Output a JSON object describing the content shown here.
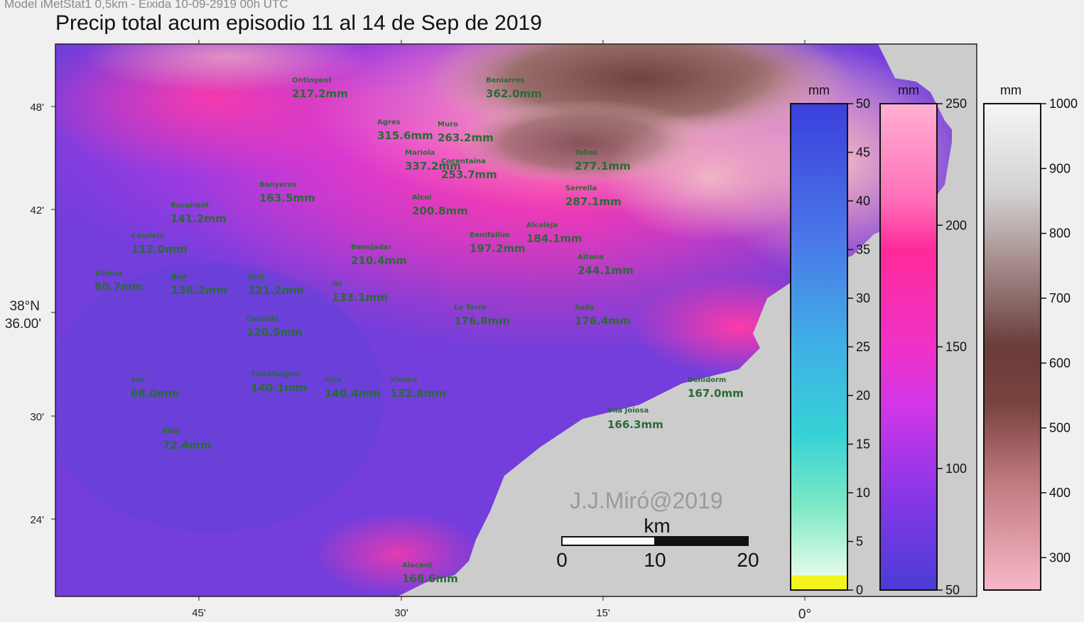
{
  "header": {
    "caption": "Model iMetStat1 0,5km - Eixida 10-09-2919 00h UTC",
    "title": "Precip total acum episodio 11 al 14 de Sep de 2019"
  },
  "axes": {
    "lat_labels": [
      "48'",
      "42'",
      "38°N",
      "36.00'",
      "30'",
      "24'"
    ],
    "lon_labels": [
      "45'",
      "30'",
      "15'",
      "0°"
    ]
  },
  "stations": [
    {
      "name": "Ontinyent",
      "value": "217.2mm"
    },
    {
      "name": "Beniarrés",
      "value": "362.0mm"
    },
    {
      "name": "Agres",
      "value": "315.6mm"
    },
    {
      "name": "Muro",
      "value": "263.2mm"
    },
    {
      "name": "Mariola",
      "value": "337.2mm"
    },
    {
      "name": "Cocentaina",
      "value": "253.7mm"
    },
    {
      "name": "Tollos",
      "value": "277.1mm"
    },
    {
      "name": "Banyeres",
      "value": "163.5mm"
    },
    {
      "name": "Serrella",
      "value": "287.1mm"
    },
    {
      "name": "Bocairent",
      "value": "141.2mm"
    },
    {
      "name": "Alcoi",
      "value": "200.8mm"
    },
    {
      "name": "Alcoleja",
      "value": "184.1mm"
    },
    {
      "name": "Benifallim",
      "value": "197.2mm"
    },
    {
      "name": "Caudete",
      "value": "112.0mm"
    },
    {
      "name": "Benejadar",
      "value": "210.4mm"
    },
    {
      "name": "Aitana",
      "value": "244.1mm"
    },
    {
      "name": "Villena",
      "value": "80.7mm"
    },
    {
      "name": "Biar",
      "value": "136.2mm"
    },
    {
      "name": "Onil",
      "value": "121.2mm"
    },
    {
      "name": "Ibi",
      "value": "133.1mm"
    },
    {
      "name": "La Torre",
      "value": "176.8mm"
    },
    {
      "name": "Sella",
      "value": "176.4mm"
    },
    {
      "name": "Castalla",
      "value": "120.5mm"
    },
    {
      "name": "Sax",
      "value": "68.0mm"
    },
    {
      "name": "Tibi/Maigmó",
      "value": "140.1mm"
    },
    {
      "name": "Foia",
      "value": "140.4mm"
    },
    {
      "name": "Xixona",
      "value": "132.8mm"
    },
    {
      "name": "Benidorm",
      "value": "167.0mm"
    },
    {
      "name": "Vila Joiosa",
      "value": "166.3mm"
    },
    {
      "name": "Elda",
      "value": "72.4mm"
    },
    {
      "name": "Alacant",
      "value": "168.6mm"
    }
  ],
  "colorbars": [
    {
      "unit": "mm",
      "ticks": [
        "50",
        "45",
        "40",
        "35",
        "30",
        "25",
        "20",
        "15",
        "10",
        "5",
        "0"
      ],
      "colors": [
        "#3a3fdc",
        "#4a78e8",
        "#3fb0e6",
        "#36d2d6",
        "#7ee9c4",
        "#e4fbea",
        "#f4f41e"
      ]
    },
    {
      "unit": "mm",
      "ticks": [
        "250",
        "200",
        "150",
        "100",
        "50"
      ],
      "colors": [
        "#ffb0d2",
        "#ff2a9a",
        "#d236e6",
        "#8a36e8",
        "#4a3cd6"
      ]
    },
    {
      "unit": "mm",
      "ticks": [
        "1000",
        "900",
        "800",
        "700",
        "600",
        "500",
        "400",
        "300"
      ],
      "colors": [
        "#f5f5f5",
        "#cfcfcf",
        "#8a6e6e",
        "#6a3c3a",
        "#a86464",
        "#e08c9c",
        "#f7b8c8"
      ]
    }
  ],
  "credit": "J.J.Miró@2019",
  "scale_bar": {
    "unit": "km",
    "labels": [
      "0",
      "10",
      "20"
    ]
  }
}
